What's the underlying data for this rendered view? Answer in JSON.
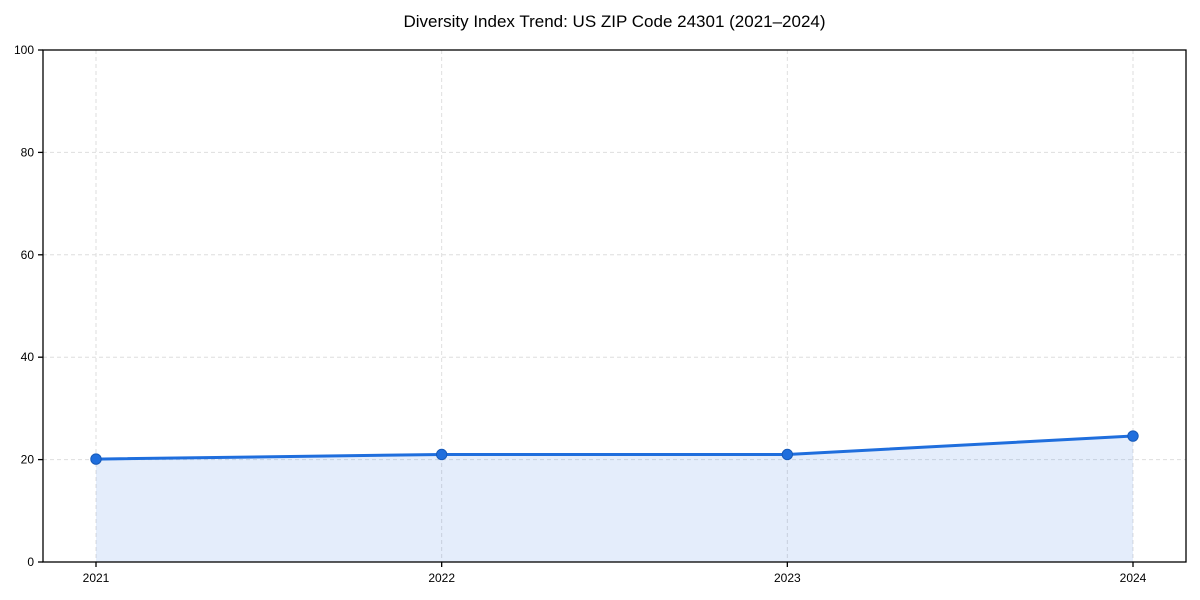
{
  "chart_data": {
    "type": "area",
    "title": "Diversity Index Trend: US ZIP Code 24301 (2021–2024)",
    "series_name": "Diversity Index",
    "x": [
      2021,
      2022,
      2023,
      2024
    ],
    "values": [
      20.1,
      21.0,
      21.0,
      24.6
    ],
    "xlabel": "",
    "ylabel": "",
    "ylim": [
      0,
      100
    ],
    "yticks": [
      0,
      20,
      40,
      60,
      80,
      100
    ],
    "xtick_labels": [
      "2021",
      "2022",
      "2023",
      "2024"
    ],
    "grid": "dashed",
    "legend_position": "none",
    "marker": "circle",
    "colors": {
      "line": "#1f6edd",
      "marker": "#1f6edd",
      "marker_edge": "#1659b8",
      "fill": "rgba(31, 110, 221, 0.12)",
      "gridline": "#dedede",
      "spine": "#000000",
      "text": "#000000"
    }
  }
}
